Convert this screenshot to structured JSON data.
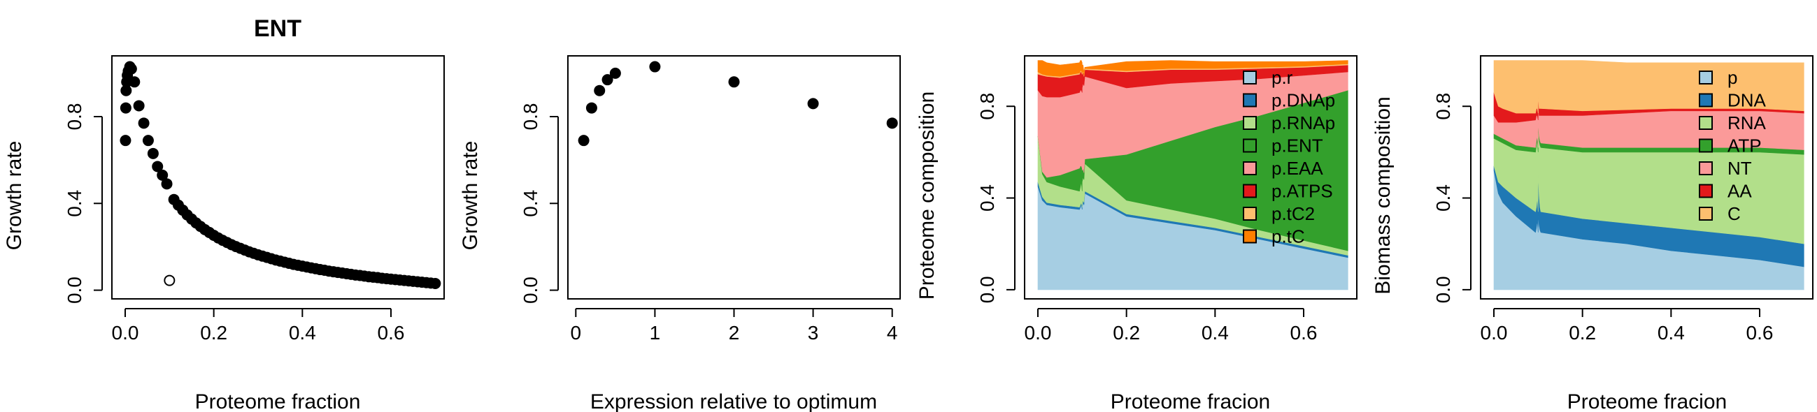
{
  "chart_data": [
    {
      "type": "scatter",
      "title": "ENT",
      "xlabel": "Proteome fraction",
      "ylabel": "Growth rate",
      "xlim": [
        -0.03,
        0.72
      ],
      "ylim": [
        -0.04,
        1.08
      ],
      "xticks": [
        0.0,
        0.2,
        0.4,
        0.6
      ],
      "yticks": [
        0.0,
        0.4,
        0.8
      ],
      "x_tick_labels": [
        "0.0",
        "0.2",
        "0.4",
        "0.6"
      ],
      "y_tick_labels": [
        "0.0",
        "0.4",
        "0.8"
      ],
      "grid": false,
      "series": [
        {
          "marker": "filled-circle",
          "points": [
            [
              0.0007,
              0.69
            ],
            [
              0.0014,
              0.84
            ],
            [
              0.0021,
              0.92
            ],
            [
              0.0035,
              0.96
            ],
            [
              0.0049,
              0.99
            ],
            [
              0.007,
              1.01
            ],
            [
              0.0105,
              1.03
            ],
            [
              0.014,
              1.02
            ],
            [
              0.021,
              0.96
            ],
            [
              0.031,
              0.85
            ],
            [
              0.042,
              0.77
            ],
            [
              0.052,
              0.69
            ],
            [
              0.063,
              0.63
            ],
            [
              0.073,
              0.57
            ],
            [
              0.084,
              0.53
            ],
            [
              0.094,
              0.49
            ],
            [
              0.11,
              0.418
            ],
            [
              0.12,
              0.392
            ],
            [
              0.13,
              0.369
            ],
            [
              0.14,
              0.347
            ],
            [
              0.15,
              0.328
            ],
            [
              0.16,
              0.31
            ],
            [
              0.17,
              0.294
            ],
            [
              0.18,
              0.279
            ],
            [
              0.19,
              0.266
            ],
            [
              0.2,
              0.253
            ],
            [
              0.21,
              0.241
            ],
            [
              0.22,
              0.23
            ],
            [
              0.23,
              0.22
            ],
            [
              0.24,
              0.21
            ],
            [
              0.25,
              0.201
            ],
            [
              0.26,
              0.193
            ],
            [
              0.27,
              0.185
            ],
            [
              0.28,
              0.177
            ],
            [
              0.29,
              0.17
            ],
            [
              0.3,
              0.163
            ],
            [
              0.31,
              0.157
            ],
            [
              0.32,
              0.151
            ],
            [
              0.33,
              0.145
            ],
            [
              0.34,
              0.139
            ],
            [
              0.35,
              0.134
            ],
            [
              0.36,
              0.129
            ],
            [
              0.37,
              0.124
            ],
            [
              0.38,
              0.119
            ],
            [
              0.39,
              0.115
            ],
            [
              0.4,
              0.111
            ],
            [
              0.41,
              0.107
            ],
            [
              0.42,
              0.103
            ],
            [
              0.43,
              0.099
            ],
            [
              0.44,
              0.095
            ],
            [
              0.45,
              0.092
            ],
            [
              0.46,
              0.088
            ],
            [
              0.47,
              0.085
            ],
            [
              0.48,
              0.082
            ],
            [
              0.49,
              0.079
            ],
            [
              0.5,
              0.076
            ],
            [
              0.51,
              0.073
            ],
            [
              0.52,
              0.07
            ],
            [
              0.53,
              0.068
            ],
            [
              0.54,
              0.065
            ],
            [
              0.55,
              0.062
            ],
            [
              0.56,
              0.06
            ],
            [
              0.57,
              0.058
            ],
            [
              0.58,
              0.055
            ],
            [
              0.59,
              0.053
            ],
            [
              0.6,
              0.051
            ],
            [
              0.61,
              0.049
            ],
            [
              0.62,
              0.047
            ],
            [
              0.63,
              0.045
            ],
            [
              0.64,
              0.043
            ],
            [
              0.65,
              0.041
            ],
            [
              0.66,
              0.039
            ],
            [
              0.67,
              0.037
            ],
            [
              0.68,
              0.035
            ],
            [
              0.69,
              0.033
            ],
            [
              0.7,
              0.031
            ]
          ]
        },
        {
          "marker": "open-circle",
          "points": [
            [
              0.1,
              0.045
            ]
          ]
        }
      ]
    },
    {
      "type": "scatter",
      "title": "",
      "xlabel": "Expression relative to optimum",
      "ylabel": "Growth rate",
      "xlim": [
        -0.1,
        4.1
      ],
      "ylim": [
        -0.04,
        1.08
      ],
      "xticks": [
        0,
        1,
        2,
        3,
        4
      ],
      "yticks": [
        0.0,
        0.4,
        0.8
      ],
      "x_tick_labels": [
        "0",
        "1",
        "2",
        "3",
        "4"
      ],
      "y_tick_labels": [
        "0.0",
        "0.4",
        "0.8"
      ],
      "grid": false,
      "series": [
        {
          "marker": "filled-circle",
          "points": [
            [
              0.1,
              0.69
            ],
            [
              0.2,
              0.84
            ],
            [
              0.3,
              0.92
            ],
            [
              0.4,
              0.97
            ],
            [
              0.5,
              1.0
            ],
            [
              1.0,
              1.03
            ],
            [
              2.0,
              0.96
            ],
            [
              3.0,
              0.86
            ],
            [
              4.0,
              0.77
            ]
          ]
        }
      ]
    },
    {
      "type": "area",
      "title": "",
      "xlabel": "Proteome fracion",
      "ylabel": "Proteome composition",
      "xlim": [
        -0.03,
        0.72
      ],
      "ylim": [
        -0.04,
        1.02
      ],
      "xticks": [
        0.0,
        0.2,
        0.4,
        0.6
      ],
      "yticks": [
        0.0,
        0.4,
        0.8
      ],
      "x_tick_labels": [
        "0.0",
        "0.2",
        "0.4",
        "0.6"
      ],
      "y_tick_labels": [
        "0.0",
        "0.4",
        "0.8"
      ],
      "stacked": true,
      "legend_position": "top-right",
      "spike_at_x": 0.1,
      "x": [
        0.0,
        0.01,
        0.02,
        0.05,
        0.1,
        0.2,
        0.3,
        0.4,
        0.5,
        0.6,
        0.7
      ],
      "series": [
        {
          "name": "p.r",
          "color": "#a6cee3",
          "values": [
            0.45,
            0.39,
            0.37,
            0.36,
            0.35,
            0.32,
            0.29,
            0.26,
            0.22,
            0.18,
            0.14
          ],
          "spike_values": [
            0.35,
            0.36,
            0.37,
            0.36,
            0.38,
            0.37,
            0.42
          ]
        },
        {
          "name": "p.DNAp",
          "color": "#1f78b4",
          "values": [
            0.02,
            0.015,
            0.01,
            0.01,
            0.01,
            0.01,
            0.01,
            0.01,
            0.01,
            0.01,
            0.01
          ],
          "spike_values": [
            0.01,
            0.01,
            0.01,
            0.01,
            0.01,
            0.01,
            0.01
          ]
        },
        {
          "name": "p.RNAp",
          "color": "#b2df8a",
          "values": [
            0.2,
            0.1,
            0.09,
            0.08,
            0.07,
            0.06,
            0.05,
            0.04,
            0.03,
            0.025,
            0.02
          ],
          "spike_values": [
            0.07,
            0.08,
            0.09,
            0.1,
            0.1,
            0.1,
            0.12
          ]
        },
        {
          "name": "p.ENT",
          "color": "#33a02c",
          "values": [
            0.0,
            0.01,
            0.02,
            0.05,
            0.1,
            0.2,
            0.3,
            0.4,
            0.5,
            0.6,
            0.7
          ],
          "spike_values": [
            0.1,
            0.09,
            0.07,
            0.05,
            0.04,
            0.03,
            0.02
          ]
        },
        {
          "name": "p.EAA",
          "color": "#fb9a99",
          "values": [
            0.2,
            0.33,
            0.35,
            0.34,
            0.33,
            0.29,
            0.25,
            0.2,
            0.16,
            0.12,
            0.08
          ],
          "spike_values": [
            0.33,
            0.33,
            0.33,
            0.36,
            0.37,
            0.38,
            0.36
          ]
        },
        {
          "name": "p.ATPS",
          "color": "#e31a1c",
          "values": [
            0.07,
            0.09,
            0.09,
            0.085,
            0.08,
            0.07,
            0.06,
            0.05,
            0.045,
            0.035,
            0.03
          ],
          "spike_values": [
            0.08,
            0.08,
            0.08,
            0.06,
            0.05,
            0.04,
            0.03
          ]
        },
        {
          "name": "p.tC2",
          "color": "#fdbf6f",
          "values": [
            0.01,
            0.005,
            0.005,
            0.005,
            0.005,
            0.005,
            0.005,
            0.005,
            0.005,
            0.005,
            0.005
          ],
          "spike_values": [
            0.005,
            0.005,
            0.005,
            0.005,
            0.005,
            0.005,
            0.005
          ]
        },
        {
          "name": "p.tC",
          "color": "#ff7f00",
          "values": [
            0.05,
            0.06,
            0.055,
            0.05,
            0.045,
            0.04,
            0.035,
            0.03,
            0.025,
            0.02,
            0.015
          ],
          "spike_values": [
            0.045,
            0.045,
            0.045,
            0.035,
            0.025,
            0.015,
            0.005
          ]
        }
      ]
    },
    {
      "type": "area",
      "title": "",
      "xlabel": "Proteome fracion",
      "ylabel": "Biomass composition",
      "xlim": [
        -0.03,
        0.72
      ],
      "ylim": [
        -0.04,
        1.02
      ],
      "xticks": [
        0.0,
        0.2,
        0.4,
        0.6
      ],
      "yticks": [
        0.0,
        0.4,
        0.8
      ],
      "x_tick_labels": [
        "0.0",
        "0.2",
        "0.4",
        "0.6"
      ],
      "y_tick_labels": [
        "0.0",
        "0.4",
        "0.8"
      ],
      "stacked": true,
      "legend_position": "top-right",
      "spike_at_x": 0.1,
      "x": [
        0.0,
        0.01,
        0.02,
        0.05,
        0.1,
        0.2,
        0.3,
        0.4,
        0.5,
        0.6,
        0.7
      ],
      "series": [
        {
          "name": "p",
          "color": "#a6cee3",
          "values": [
            0.52,
            0.42,
            0.38,
            0.32,
            0.25,
            0.22,
            0.2,
            0.17,
            0.15,
            0.13,
            0.1
          ],
          "spike_values": [
            0.25,
            0.27,
            0.3,
            0.33,
            0.28,
            0.26,
            0.25
          ]
        },
        {
          "name": "DNA",
          "color": "#1f78b4",
          "values": [
            0.02,
            0.05,
            0.07,
            0.08,
            0.09,
            0.09,
            0.09,
            0.1,
            0.1,
            0.1,
            0.1
          ],
          "spike_values": [
            0.09,
            0.09,
            0.1,
            0.19,
            0.13,
            0.1,
            0.09
          ]
        },
        {
          "name": "RNA",
          "color": "#b2df8a",
          "values": [
            0.12,
            0.18,
            0.19,
            0.21,
            0.26,
            0.29,
            0.31,
            0.33,
            0.35,
            0.37,
            0.39
          ],
          "spike_values": [
            0.26,
            0.27,
            0.25,
            0.2,
            0.24,
            0.27,
            0.28
          ]
        },
        {
          "name": "ATP",
          "color": "#33a02c",
          "values": [
            0.02,
            0.02,
            0.02,
            0.02,
            0.02,
            0.02,
            0.02,
            0.02,
            0.02,
            0.02,
            0.02
          ],
          "spike_values": [
            0.02,
            0.02,
            0.02,
            0.02,
            0.02,
            0.02,
            0.02
          ]
        },
        {
          "name": "NT",
          "color": "#fb9a99",
          "values": [
            0.08,
            0.06,
            0.07,
            0.1,
            0.12,
            0.14,
            0.15,
            0.16,
            0.16,
            0.16,
            0.16
          ],
          "spike_values": [
            0.12,
            0.11,
            0.09,
            0.08,
            0.09,
            0.11,
            0.12
          ]
        },
        {
          "name": "AA",
          "color": "#e31a1c",
          "values": [
            0.1,
            0.07,
            0.06,
            0.04,
            0.03,
            0.02,
            0.015,
            0.01,
            0.01,
            0.01,
            0.01
          ],
          "spike_values": [
            0.03,
            0.03,
            0.03,
            0.03,
            0.03,
            0.03,
            0.03
          ]
        },
        {
          "name": "C",
          "color": "#fdbf6f",
          "values": [
            0.14,
            0.2,
            0.21,
            0.23,
            0.23,
            0.22,
            0.205,
            0.2,
            0.2,
            0.2,
            0.21
          ],
          "spike_values": [
            0.23,
            0.21,
            0.21,
            0.15,
            0.21,
            0.21,
            0.21
          ]
        }
      ]
    }
  ]
}
